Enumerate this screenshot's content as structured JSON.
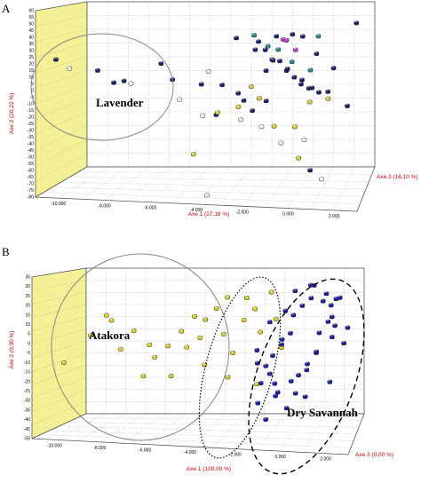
{
  "chart_data": [
    {
      "panel": "A",
      "type": "scatter",
      "projection": "3d",
      "xlabel": "Axe 1 (27,18 %)",
      "ylabel": "Axe 2 (20,22 %)",
      "zlabel": "Axe 3 (16,10 %)",
      "xlim": [
        -11000,
        3000
      ],
      "ylim": [
        -80,
        65
      ],
      "x_ticks": [
        "-10.000",
        "-8.000",
        "-6.000",
        "-4.000",
        "-2.000",
        "0.000",
        "2.000"
      ],
      "y_ticks": [
        "60",
        "55",
        "50",
        "45",
        "40",
        "35",
        "30",
        "25",
        "20",
        "15",
        "10",
        "5",
        "0",
        "-5",
        "-10",
        "-15",
        "-20",
        "-25",
        "-30",
        "-35",
        "-40",
        "-45",
        "-50",
        "-55",
        "-60",
        "-65",
        "-70",
        "-75",
        "-80"
      ],
      "group_labels": [
        "Lavender"
      ],
      "grid": true,
      "colors": {
        "navy": "#1a1f6e",
        "yellow": "#d8d03a",
        "teal": "#2a8a8a",
        "magenta": "#c83cc8",
        "white": "#f2f2f2",
        "back_wall": "#ffffff",
        "side_wall": "#f3f096"
      },
      "series": [
        {
          "color": "navy",
          "x": [
            -10200,
            -8500,
            -7900,
            -7300,
            -5800,
            -5400,
            -4000,
            -3200,
            -2600,
            -2200,
            -1800,
            -1500,
            -1300,
            -1100,
            -900,
            -700,
            -500,
            -300,
            -100,
            100,
            300,
            500,
            800,
            1000,
            1300,
            1700,
            2200,
            2500,
            -2500,
            -1900,
            -1400,
            -800,
            -200,
            400,
            900,
            -3500,
            -1200,
            600
          ],
          "y": [
            28,
            22,
            15,
            12,
            28,
            18,
            10,
            12,
            8,
            -2,
            40,
            42,
            38,
            33,
            28,
            30,
            25,
            22,
            18,
            15,
            14,
            10,
            6,
            5,
            8,
            22,
            -5,
            62,
            46,
            -8,
            2,
            48,
            52,
            46,
            35,
            -10,
            20,
            -55
          ]
        },
        {
          "color": "yellow",
          "x": [
            -4500,
            -3300,
            -2500,
            -1700,
            -900,
            -100,
            700,
            1400,
            -2000,
            200
          ],
          "y": [
            -40,
            -12,
            -5,
            4,
            -22,
            -20,
            -5,
            0,
            12,
            -48
          ]
        },
        {
          "color": "teal",
          "x": [
            -1800,
            -1300,
            -700,
            -200,
            500,
            1000
          ],
          "y": [
            50,
            44,
            37,
            30,
            26,
            48
          ]
        },
        {
          "color": "magenta",
          "x": [
            -600,
            -300,
            0
          ],
          "y": [
            48,
            43,
            38
          ]
        },
        {
          "color": "white",
          "x": [
            -9800,
            -7000,
            -5000,
            -4100,
            -3700,
            -2400,
            -1600,
            -600,
            300,
            1200,
            -3800
          ],
          "y": [
            26,
            10,
            0,
            -10,
            20,
            -15,
            -18,
            -35,
            -30,
            -65,
            -75
          ]
        }
      ]
    },
    {
      "panel": "B",
      "type": "scatter",
      "projection": "3d",
      "xlabel": "Axe 1 (100,00 %)",
      "ylabel": "Axe 2 (0,00 %)",
      "zlabel": "Axe 3 (0,00 %)",
      "xlim": [
        -11000,
        3000
      ],
      "ylim": [
        -50,
        35
      ],
      "x_ticks": [
        "-10.000",
        "-8.000",
        "-6.000",
        "-4.000",
        "-2.000",
        "0.000",
        "2.000"
      ],
      "y_ticks": [
        "35",
        "30",
        "25",
        "20",
        "15",
        "10",
        "5",
        "0",
        "-5",
        "-10",
        "-15",
        "-20",
        "-25",
        "-30",
        "-35",
        "-40",
        "-45",
        "-50"
      ],
      "group_labels": [
        "Atakora",
        "Dry Savannah"
      ],
      "grid": true,
      "colors": {
        "navy": "#1a1f9e",
        "yellow": "#d9d12e",
        "back_wall": "#ffffff",
        "side_wall": "#f3f096"
      },
      "series": [
        {
          "color": "yellow",
          "x": [
            -9700,
            -8600,
            -8000,
            -7200,
            -6700,
            -6100,
            -5700,
            -5200,
            -4700,
            -4300,
            -3800,
            -3400,
            -3000,
            -2600,
            -2200,
            -1800,
            -1400,
            -1000,
            -600,
            -6400,
            -5000,
            -3600,
            -2400,
            -1200,
            -200,
            -7600,
            -4000,
            -2800,
            -1600,
            -400
          ],
          "y": [
            -12,
            5,
            18,
            -4,
            8,
            2,
            -8,
            0,
            10,
            -2,
            5,
            12,
            20,
            28,
            -6,
            14,
            22,
            6,
            30,
            -15,
            -18,
            -10,
            -20,
            -22,
            0,
            12,
            16,
            8,
            25,
            15
          ]
        },
        {
          "color": "navy",
          "x": [
            -1300,
            -1000,
            -700,
            -400,
            -100,
            200,
            500,
            800,
            1100,
            1400,
            1700,
            2000,
            2300,
            2600,
            -1100,
            -800,
            -500,
            -200,
            100,
            400,
            700,
            1000,
            1300,
            1600,
            1900,
            2200,
            2500,
            -900,
            -300,
            300,
            900,
            1500,
            2100,
            2700,
            -600,
            0,
            600,
            1200,
            1800,
            2400,
            -1200,
            -200,
            1000,
            2000
          ],
          "y": [
            -30,
            -22,
            -15,
            -8,
            0,
            8,
            15,
            22,
            28,
            32,
            25,
            18,
            10,
            2,
            -5,
            -12,
            -20,
            -28,
            -35,
            -25,
            -18,
            -10,
            -2,
            6,
            14,
            20,
            26,
            -40,
            -30,
            -20,
            -12,
            -5,
            5,
            12,
            12,
            20,
            28,
            33,
            30,
            24,
            -10,
            5,
            -30,
            -20
          ]
        }
      ]
    }
  ]
}
